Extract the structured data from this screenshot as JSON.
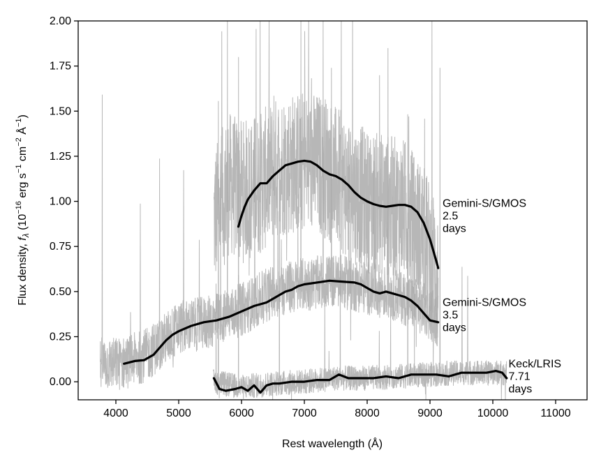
{
  "chart_data": {
    "type": "line",
    "xlabel": "Rest wavelength (Å)",
    "ylabel": "Flux density, f_λ (10^−16 erg s^−1 cm^−2 Å^−1)",
    "ylabel_parts": {
      "pre": "Flux density, ",
      "sym": "f",
      "sub": "λ",
      "unit_open": " (10",
      "exp1": "−16",
      "unit_erg": " erg s",
      "exp2": "−1",
      "unit_cm": " cm",
      "exp3": "−2",
      "unit_A": " Å",
      "exp4": "−1",
      "close": ")"
    },
    "xlim": [
      3400,
      11500
    ],
    "ylim": [
      -0.1,
      2.0
    ],
    "x_ticks": [
      4000,
      5000,
      6000,
      7000,
      8000,
      9000,
      10000,
      11000
    ],
    "x_tick_labels": [
      "4000",
      "5000",
      "6000",
      "7000",
      "8000",
      "9000",
      "10000",
      "11000"
    ],
    "y_ticks": [
      0.0,
      0.25,
      0.5,
      0.75,
      1.0,
      1.25,
      1.5,
      1.75,
      2.0
    ],
    "y_tick_labels": [
      "0.00",
      "0.25",
      "0.50",
      "0.75",
      "1.00",
      "1.25",
      "1.50",
      "1.75",
      "2.00"
    ],
    "grid": false,
    "colors": {
      "raw": "#aaaaaa",
      "smooth": "#000000"
    },
    "series": [
      {
        "kind": "raw",
        "x_range": [
          5560,
          9130
        ],
        "base": [
          [
            5560,
            0.9
          ],
          [
            5800,
            1.1
          ],
          [
            6000,
            1.05
          ],
          [
            6300,
            1.1
          ],
          [
            6600,
            1.2
          ],
          [
            7000,
            1.22
          ],
          [
            7300,
            1.2
          ],
          [
            7600,
            1.1
          ],
          [
            8000,
            1.0
          ],
          [
            8300,
            0.98
          ],
          [
            8600,
            0.95
          ],
          [
            8900,
            0.8
          ],
          [
            9130,
            0.6
          ]
        ],
        "noise": 0.4
      },
      {
        "kind": "raw",
        "x_range": [
          3750,
          9130
        ],
        "base": [
          [
            3750,
            0.1
          ],
          [
            4100,
            0.1
          ],
          [
            4500,
            0.15
          ],
          [
            5000,
            0.3
          ],
          [
            5500,
            0.33
          ],
          [
            6000,
            0.4
          ],
          [
            6500,
            0.5
          ],
          [
            7000,
            0.54
          ],
          [
            7500,
            0.56
          ],
          [
            8000,
            0.52
          ],
          [
            8500,
            0.48
          ],
          [
            9000,
            0.38
          ],
          [
            9130,
            0.34
          ]
        ],
        "noise": 0.15
      },
      {
        "kind": "raw",
        "x_range": [
          5550,
          10220
        ],
        "base": [
          [
            5550,
            0.0
          ],
          [
            6000,
            -0.03
          ],
          [
            6500,
            -0.01
          ],
          [
            7000,
            0.0
          ],
          [
            7500,
            0.02
          ],
          [
            8000,
            0.02
          ],
          [
            8500,
            0.03
          ],
          [
            9000,
            0.04
          ],
          [
            9500,
            0.05
          ],
          [
            10000,
            0.05
          ],
          [
            10220,
            0.05
          ]
        ],
        "noise": 0.07
      },
      {
        "kind": "smooth",
        "points": [
          [
            5950,
            0.86
          ],
          [
            6000,
            0.92
          ],
          [
            6050,
            0.97
          ],
          [
            6100,
            1.01
          ],
          [
            6200,
            1.06
          ],
          [
            6300,
            1.1
          ],
          [
            6400,
            1.1
          ],
          [
            6500,
            1.14
          ],
          [
            6600,
            1.17
          ],
          [
            6700,
            1.2
          ],
          [
            6800,
            1.21
          ],
          [
            6900,
            1.22
          ],
          [
            7000,
            1.225
          ],
          [
            7100,
            1.22
          ],
          [
            7200,
            1.2
          ],
          [
            7300,
            1.17
          ],
          [
            7400,
            1.15
          ],
          [
            7500,
            1.14
          ],
          [
            7600,
            1.12
          ],
          [
            7700,
            1.09
          ],
          [
            7800,
            1.05
          ],
          [
            7900,
            1.02
          ],
          [
            8000,
            1.0
          ],
          [
            8100,
            0.985
          ],
          [
            8200,
            0.975
          ],
          [
            8300,
            0.97
          ],
          [
            8400,
            0.975
          ],
          [
            8500,
            0.98
          ],
          [
            8600,
            0.98
          ],
          [
            8700,
            0.97
          ],
          [
            8800,
            0.94
          ],
          [
            8900,
            0.88
          ],
          [
            9000,
            0.79
          ],
          [
            9100,
            0.67
          ],
          [
            9130,
            0.63
          ]
        ]
      },
      {
        "kind": "smooth",
        "points": [
          [
            4130,
            0.1
          ],
          [
            4300,
            0.115
          ],
          [
            4450,
            0.12
          ],
          [
            4600,
            0.15
          ],
          [
            4700,
            0.19
          ],
          [
            4800,
            0.23
          ],
          [
            4900,
            0.26
          ],
          [
            5000,
            0.28
          ],
          [
            5200,
            0.31
          ],
          [
            5400,
            0.33
          ],
          [
            5600,
            0.34
          ],
          [
            5800,
            0.36
          ],
          [
            6000,
            0.39
          ],
          [
            6200,
            0.42
          ],
          [
            6300,
            0.43
          ],
          [
            6400,
            0.44
          ],
          [
            6500,
            0.46
          ],
          [
            6600,
            0.48
          ],
          [
            6700,
            0.5
          ],
          [
            6800,
            0.51
          ],
          [
            6900,
            0.53
          ],
          [
            7000,
            0.54
          ],
          [
            7200,
            0.55
          ],
          [
            7400,
            0.56
          ],
          [
            7600,
            0.555
          ],
          [
            7800,
            0.55
          ],
          [
            7900,
            0.54
          ],
          [
            8000,
            0.52
          ],
          [
            8100,
            0.5
          ],
          [
            8200,
            0.49
          ],
          [
            8300,
            0.5
          ],
          [
            8400,
            0.49
          ],
          [
            8500,
            0.48
          ],
          [
            8600,
            0.47
          ],
          [
            8700,
            0.45
          ],
          [
            8800,
            0.42
          ],
          [
            8900,
            0.38
          ],
          [
            9000,
            0.34
          ],
          [
            9130,
            0.33
          ]
        ]
      },
      {
        "kind": "smooth",
        "points": [
          [
            5560,
            0.02
          ],
          [
            5650,
            -0.04
          ],
          [
            5750,
            -0.05
          ],
          [
            5900,
            -0.04
          ],
          [
            6000,
            -0.03
          ],
          [
            6100,
            -0.05
          ],
          [
            6200,
            -0.02
          ],
          [
            6300,
            -0.06
          ],
          [
            6400,
            -0.02
          ],
          [
            6500,
            -0.01
          ],
          [
            6600,
            -0.01
          ],
          [
            6800,
            0.0
          ],
          [
            7000,
            0.0
          ],
          [
            7200,
            0.01
          ],
          [
            7400,
            0.01
          ],
          [
            7550,
            0.04
          ],
          [
            7700,
            0.02
          ],
          [
            7900,
            0.02
          ],
          [
            8100,
            0.02
          ],
          [
            8300,
            0.03
          ],
          [
            8500,
            0.02
          ],
          [
            8700,
            0.04
          ],
          [
            8900,
            0.04
          ],
          [
            9100,
            0.04
          ],
          [
            9300,
            0.03
          ],
          [
            9500,
            0.05
          ],
          [
            9700,
            0.05
          ],
          [
            9900,
            0.05
          ],
          [
            10050,
            0.06
          ],
          [
            10150,
            0.05
          ],
          [
            10220,
            0.02
          ]
        ]
      }
    ],
    "annotations": [
      {
        "lines": [
          "Gemini-S/GMOS",
          "2.5",
          "days"
        ],
        "x": 9200,
        "y": 0.97
      },
      {
        "lines": [
          "Gemini-S/GMOS",
          "3.5",
          "days"
        ],
        "x": 9200,
        "y": 0.42
      },
      {
        "lines": [
          "Keck/LRIS",
          "7.71",
          "days"
        ],
        "x": 10250,
        "y": 0.08
      }
    ]
  }
}
